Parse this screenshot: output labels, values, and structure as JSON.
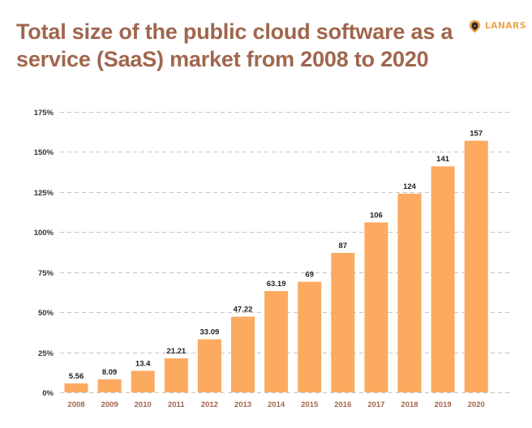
{
  "header": {
    "title": "Total size of the public cloud software as a service (SaaS) market from 2008 to 2020",
    "logo_text": "LANARS",
    "logo_icon": "lion-head-icon"
  },
  "colors": {
    "title": "#a0664d",
    "bar": "#fcaa5f",
    "logo_accent": "#f0a34c",
    "x_tick": "#a0664d",
    "grid": "#c4c4c4"
  },
  "chart_data": {
    "type": "bar",
    "title": "Total size of the public cloud software as a service (SaaS) market from 2008 to 2020",
    "xlabel": "",
    "ylabel": "",
    "categories": [
      "2008",
      "2009",
      "2010",
      "2011",
      "2012",
      "2013",
      "2014",
      "2015",
      "2016",
      "2017",
      "2018",
      "2019",
      "2020"
    ],
    "values": [
      5.56,
      8.09,
      13.4,
      21.21,
      33.09,
      47.22,
      63.19,
      69,
      87,
      106,
      124,
      141,
      157
    ],
    "value_labels": [
      "5.56",
      "8.09",
      "13.4",
      "21.21",
      "33.09",
      "47.22",
      "63.19",
      "69",
      "87",
      "106",
      "124",
      "141",
      "157"
    ],
    "y_ticks": [
      0,
      25,
      50,
      75,
      100,
      125,
      150,
      175
    ],
    "y_tick_labels": [
      "0%",
      "25%",
      "50%",
      "75%",
      "100%",
      "125%",
      "150%",
      "175%"
    ],
    "ylim": [
      0,
      175
    ],
    "grid": true,
    "grid_style": "dashed",
    "legend": "none"
  }
}
